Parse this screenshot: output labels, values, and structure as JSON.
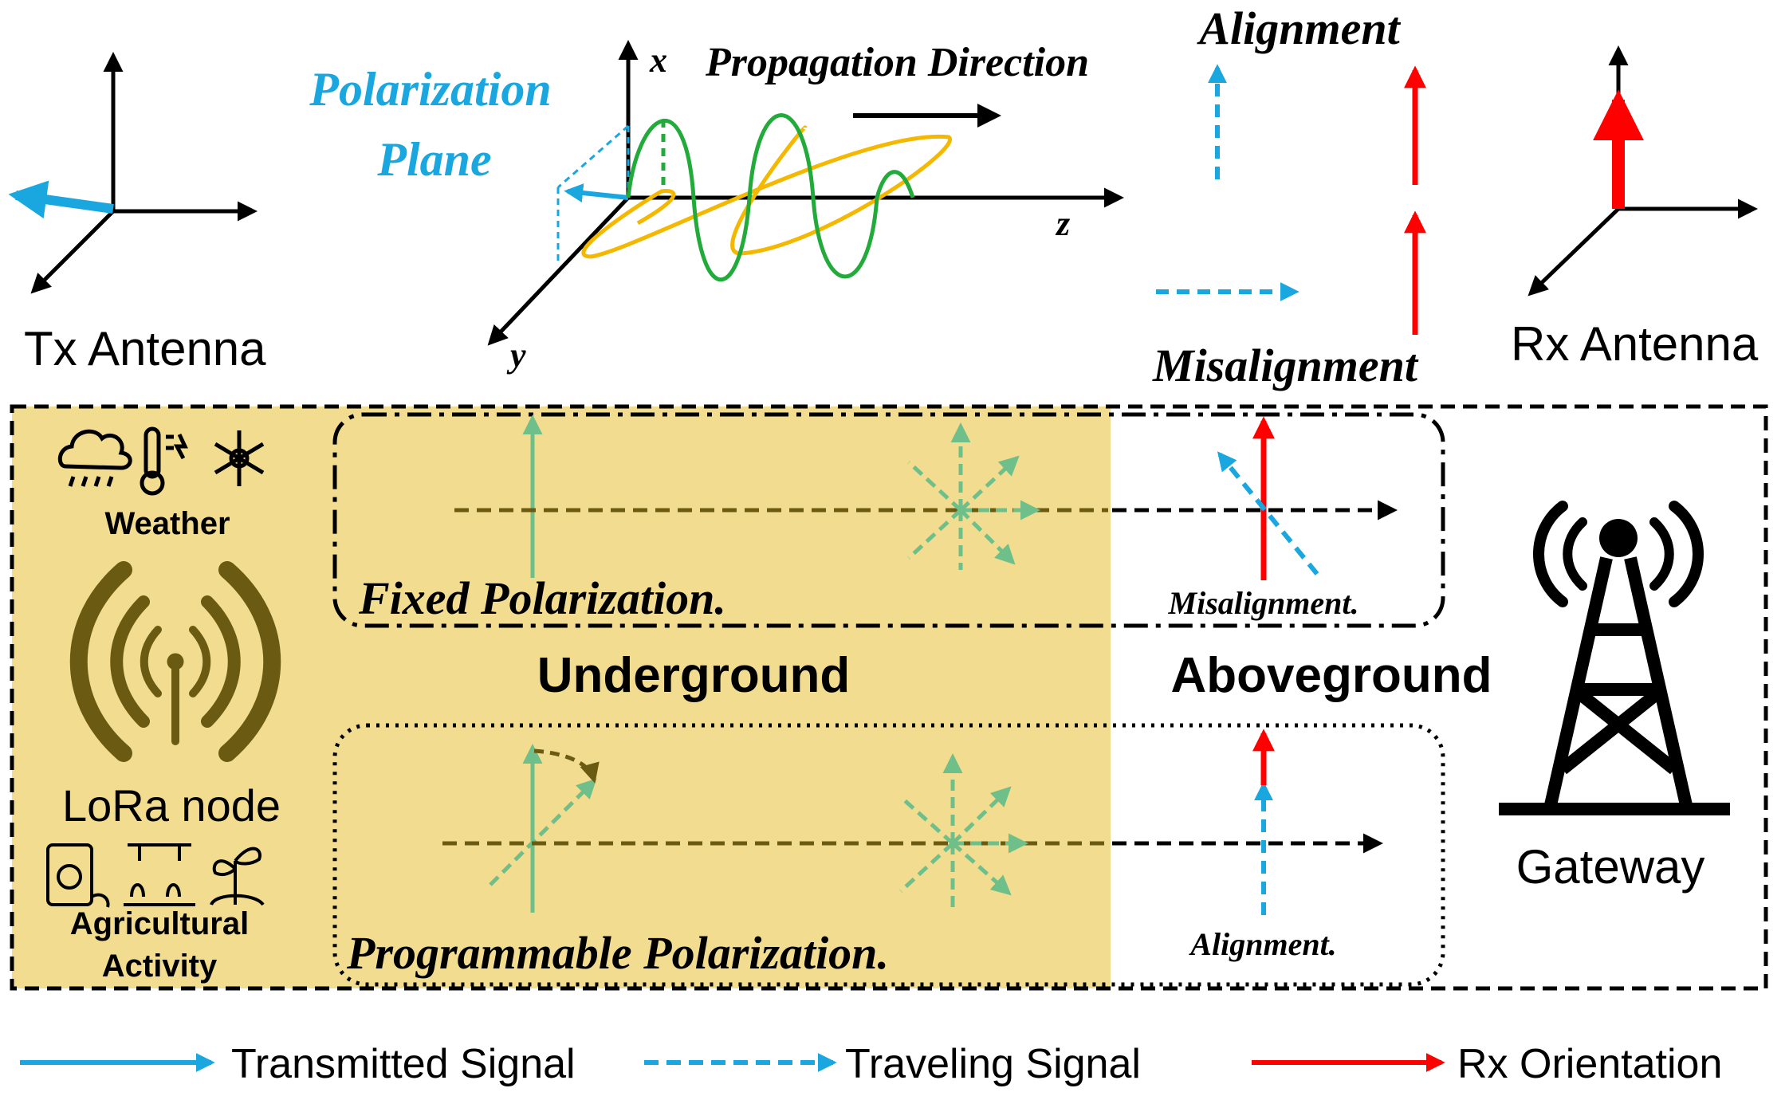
{
  "colors": {
    "transmitted": "#1aa7e0",
    "rx": "#ff0000",
    "underground_bg": "#f2dc8f",
    "lora_brown": "#6b5a12",
    "wave_green": "#22aa3a",
    "wave_yellow": "#f5b800",
    "signal_green": "#6fbf8a"
  },
  "top": {
    "tx_label": "Tx Antenna",
    "rx_label": "Rx Antenna",
    "polarization_plane_line1": "Polarization",
    "polarization_plane_line2": "Plane",
    "propagation_direction": "Propagation Direction",
    "axis_x": "x",
    "axis_y": "y",
    "axis_z": "z",
    "alignment": "Alignment",
    "misalignment": "Misalignment"
  },
  "left_panel": {
    "weather": "Weather",
    "lora_node": "LoRa node",
    "agricultural_line1": "Agricultural",
    "agricultural_line2": "Activity",
    "icons": [
      "rain-cloud-icon",
      "thermometer-icon",
      "snowflake-icon",
      "antenna-signal-icon",
      "fertilizer-bag-icon",
      "sprinkler-icon",
      "plant-icon"
    ]
  },
  "middle": {
    "fixed_polarization": "Fixed Polarization.",
    "programmable_polarization": "Programmable Polarization.",
    "underground": "Underground",
    "aboveground": "Aboveground",
    "misalignment_small": "Misalignment.",
    "alignment_small": "Alignment."
  },
  "gateway": {
    "label": "Gateway",
    "icon": "cell-tower-icon"
  },
  "legend": {
    "transmitted_signal": "Transmitted Signal",
    "traveling_signal": "Traveling Signal",
    "rx_orientation": "Rx Orientation"
  }
}
